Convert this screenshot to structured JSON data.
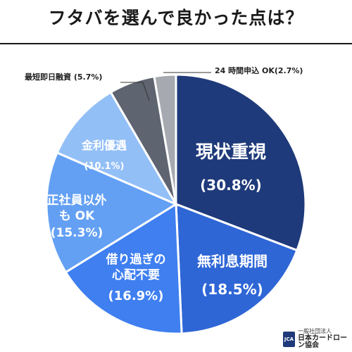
{
  "title": "フタバを選んで良かった点は？",
  "chart_data": {
    "type": "pie",
    "slices": [
      {
        "label_lines": [
          "現状重視"
        ],
        "value_text": "(30.8%)",
        "value": 30.8,
        "color": "#1e3a7a",
        "label_color": "#ffffff",
        "label_pos": "inside"
      },
      {
        "label_lines": [
          "無利息期間"
        ],
        "value_text": "(18.5%)",
        "value": 18.5,
        "color": "#2e66d6",
        "label_color": "#ffffff",
        "label_pos": "inside"
      },
      {
        "label_lines": [
          "借り過ぎの",
          "心配不要"
        ],
        "value_text": "(16.9%)",
        "value": 16.9,
        "color": "#3f7ff0",
        "label_color": "#ffffff",
        "label_pos": "inside"
      },
      {
        "label_lines": [
          "正社員以外",
          "も OK"
        ],
        "value_text": "(15.3%)",
        "value": 15.3,
        "color": "#63a0f4",
        "label_color": "#ffffff",
        "label_pos": "inside"
      },
      {
        "label_lines": [
          "金利優遇"
        ],
        "value_text": "(10.1%)",
        "value": 10.1,
        "color": "#93bff7",
        "label_color": "#ffffff",
        "label_pos": "inside"
      },
      {
        "label_lines": [
          "最短即日融資 (5.7%)"
        ],
        "value_text": "",
        "value": 5.7,
        "color": "#5e6470",
        "label_color": "#222222",
        "label_pos": "outside-left"
      },
      {
        "label_lines": [
          "24 時間申込 OK(2.7%)"
        ],
        "value_text": "",
        "value": 2.7,
        "color": "#a6aab0",
        "label_color": "#222222",
        "label_pos": "outside-right"
      }
    ]
  },
  "footer": {
    "logo_text": "JCA",
    "line1": "一般社団法人",
    "line2": "日本カードローン協会"
  }
}
